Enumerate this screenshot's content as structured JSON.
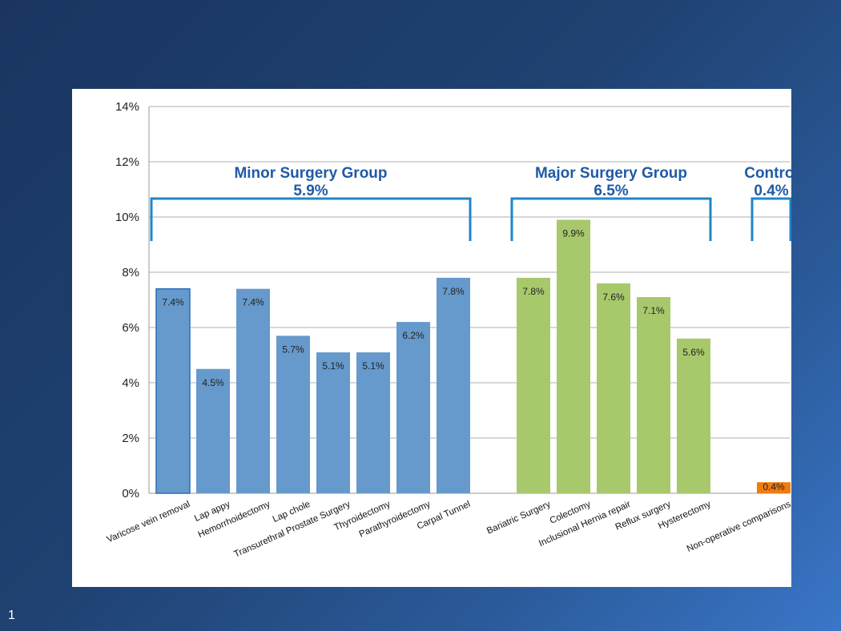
{
  "slide": {
    "number": "1"
  },
  "colors": {
    "minor": "#6699cc",
    "minor_edge": "#4f86c0",
    "major": "#a8c86c",
    "control": "#f07c10",
    "bracket": "#1f86c8",
    "group_text": "#1f5aa6"
  },
  "groups": [
    {
      "id": "minor",
      "name": "Minor Surgery Group",
      "value": "5.9%"
    },
    {
      "id": "major",
      "name": "Major Surgery Group",
      "value": "6.5%"
    },
    {
      "id": "control",
      "name": "Control",
      "value": "0.4%"
    }
  ],
  "chart_data": {
    "type": "bar",
    "title": "",
    "xlabel": "",
    "ylabel": "",
    "ylim": [
      0,
      14
    ],
    "yticks": [
      "0%",
      "2%",
      "4%",
      "6%",
      "8%",
      "10%",
      "12%",
      "14%"
    ],
    "grid": true,
    "categories": [
      "Varicose vein removal",
      "Lap appy",
      "Hemorrhoidectomy",
      "Lap chole",
      "Transurethral Prostate Surgery",
      "Thyroidectomy",
      "Parathyroidectomy",
      "Carpal Tunnel",
      "Bariatric Surgery",
      "Colectomy",
      "Inclusional Hernia repair",
      "Reflux surgery",
      "Hysterectomy",
      "Non-operative comparisons"
    ],
    "values": [
      7.4,
      4.5,
      7.4,
      5.7,
      5.1,
      5.1,
      6.2,
      7.8,
      7.8,
      9.9,
      7.6,
      7.1,
      5.6,
      0.4
    ],
    "labels": [
      "7.4%",
      "4.5%",
      "7.4%",
      "5.7%",
      "5.1%",
      "5.1%",
      "6.2%",
      "7.8%",
      "7.8%",
      "9.9%",
      "7.6%",
      "7.1%",
      "5.6%",
      "0.4%"
    ],
    "group_of": [
      "minor",
      "minor",
      "minor",
      "minor",
      "minor",
      "minor",
      "minor",
      "minor",
      "major",
      "major",
      "major",
      "major",
      "major",
      "control"
    ]
  }
}
